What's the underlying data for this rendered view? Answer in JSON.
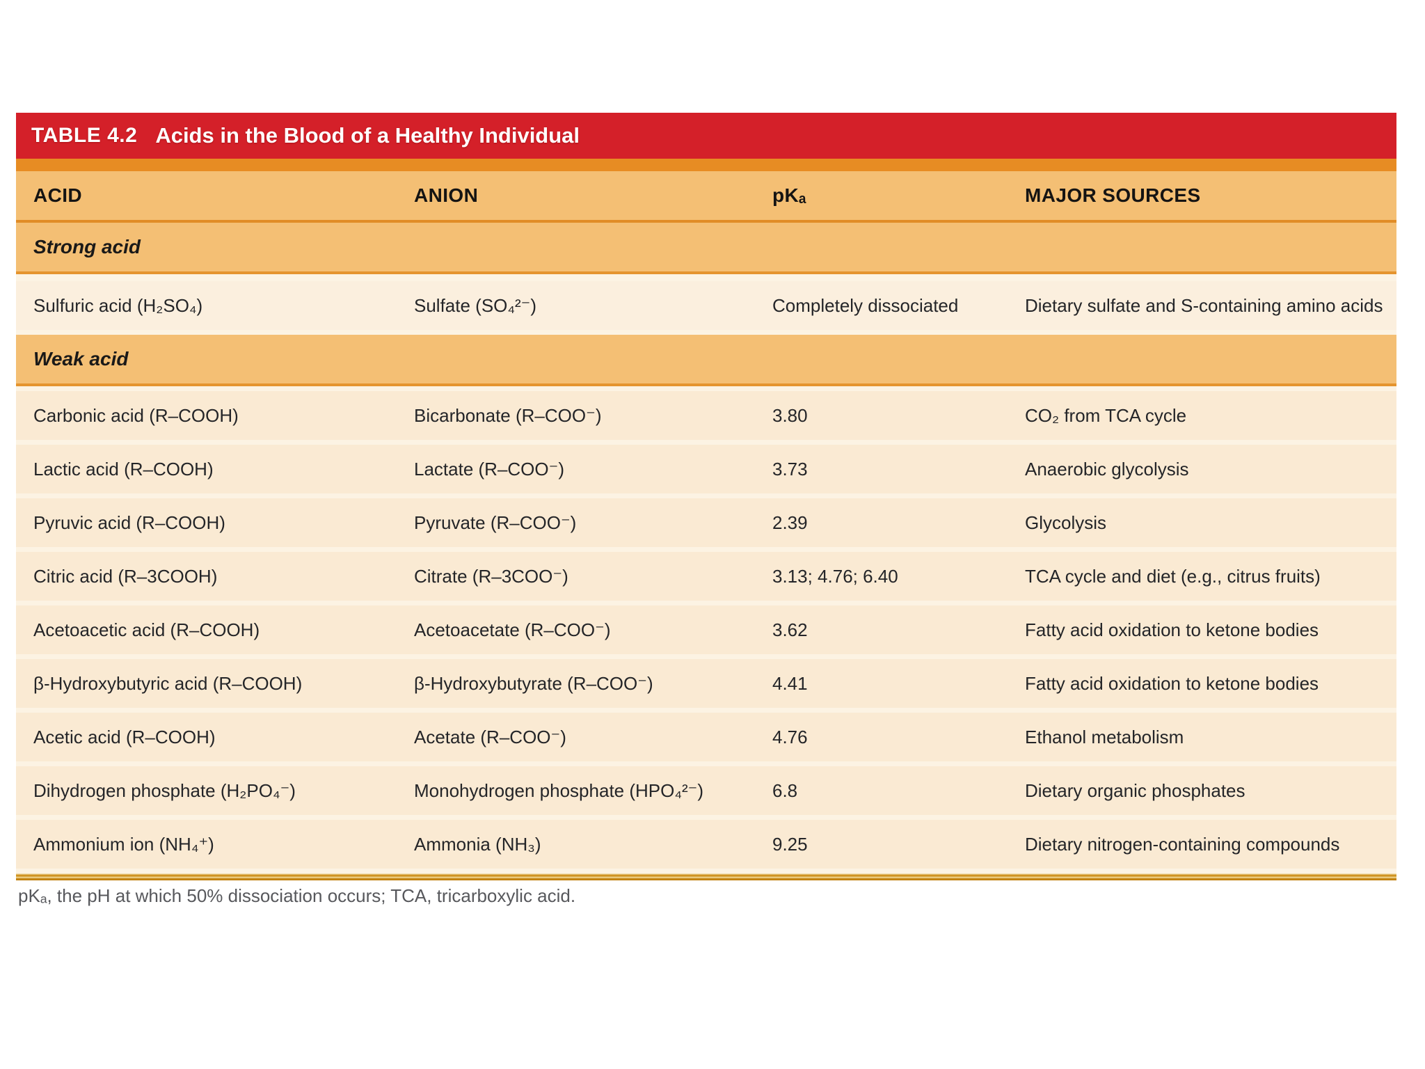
{
  "colors": {
    "banner_red": "#d42029",
    "accent_orange": "#e78c23",
    "band_orange": "#f4bf74",
    "band_border": "#e18c26",
    "row_cream": "#faead3",
    "gap_cream": "#fcf3e3",
    "gold_rule": "#cf9322",
    "footnote_gray": "#57585c"
  },
  "table": {
    "title_label": "TABLE 4.2",
    "title": "Acids in the Blood of a Healthy Individual",
    "columns": [
      "ACID",
      "ANION",
      "pKₐ",
      "MAJOR SOURCES"
    ],
    "sections": [
      {
        "label": "Strong acid",
        "rows": [
          {
            "acid": "Sulfuric acid (H₂SO₄)",
            "anion": "Sulfate (SO₄²⁻)",
            "pka": "Completely dissociated",
            "source": "Dietary sulfate and S-containing amino acids"
          }
        ]
      },
      {
        "label": "Weak acid",
        "rows": [
          {
            "acid": "Carbonic acid (R–COOH)",
            "anion": "Bicarbonate (R–COO⁻)",
            "pka": "3.80",
            "source": "CO₂ from TCA cycle"
          },
          {
            "acid": "Lactic acid (R–COOH)",
            "anion": "Lactate (R–COO⁻)",
            "pka": "3.73",
            "source": "Anaerobic glycolysis"
          },
          {
            "acid": "Pyruvic acid (R–COOH)",
            "anion": "Pyruvate (R–COO⁻)",
            "pka": "2.39",
            "source": "Glycolysis"
          },
          {
            "acid": "Citric acid (R–3COOH)",
            "anion": "Citrate (R–3COO⁻)",
            "pka": "3.13; 4.76; 6.40",
            "source": "TCA cycle and diet (e.g., citrus fruits)"
          },
          {
            "acid": "Acetoacetic acid (R–COOH)",
            "anion": "Acetoacetate (R–COO⁻)",
            "pka": "3.62",
            "source": "Fatty acid oxidation to ketone bodies"
          },
          {
            "acid": "β-Hydroxybutyric acid (R–COOH)",
            "anion": "β-Hydroxybutyrate (R–COO⁻)",
            "pka": "4.41",
            "source": "Fatty acid oxidation to ketone bodies"
          },
          {
            "acid": "Acetic acid (R–COOH)",
            "anion": "Acetate (R–COO⁻)",
            "pka": "4.76",
            "source": "Ethanol metabolism"
          },
          {
            "acid": "Dihydrogen phosphate (H₂PO₄⁻)",
            "anion": "Monohydrogen phosphate (HPO₄²⁻)",
            "pka": "6.8",
            "source": "Dietary organic phosphates"
          },
          {
            "acid": "Ammonium ion (NH₄⁺)",
            "anion": "Ammonia (NH₃)",
            "pka": "9.25",
            "source": "Dietary nitrogen-containing compounds"
          }
        ]
      }
    ],
    "footnote": "pKₐ, the pH at which 50% dissociation occurs; TCA, tricarboxylic acid."
  }
}
